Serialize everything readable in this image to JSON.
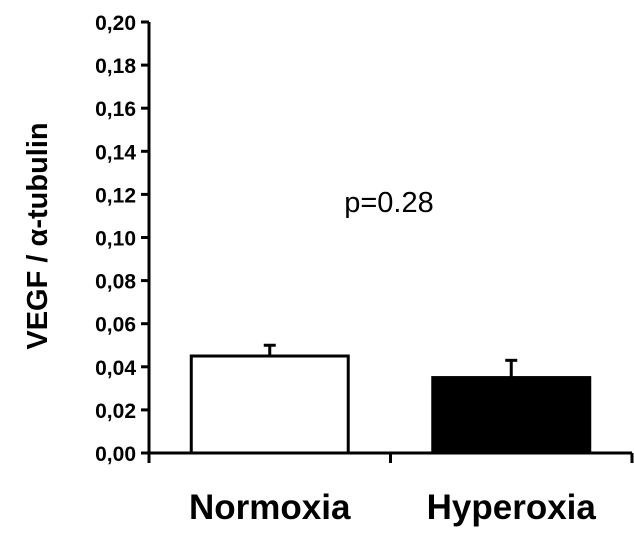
{
  "chart_data": {
    "type": "bar",
    "title": "",
    "xlabel": "",
    "ylabel": "VEGF / α-tubulin",
    "ylim": [
      0,
      0.2
    ],
    "yticks": [
      "0,00",
      "0,02",
      "0,04",
      "0,06",
      "0,08",
      "0,10",
      "0,12",
      "0,14",
      "0,16",
      "0,18",
      "0,20"
    ],
    "categories": [
      "Normoxia",
      "Hyperoxia"
    ],
    "values": [
      0.045,
      0.035
    ],
    "errors": [
      0.005,
      0.008
    ],
    "bar_fills": [
      "#ffffff",
      "#000000"
    ],
    "annotation": "p=0.28",
    "grid": false,
    "legend": "none"
  }
}
